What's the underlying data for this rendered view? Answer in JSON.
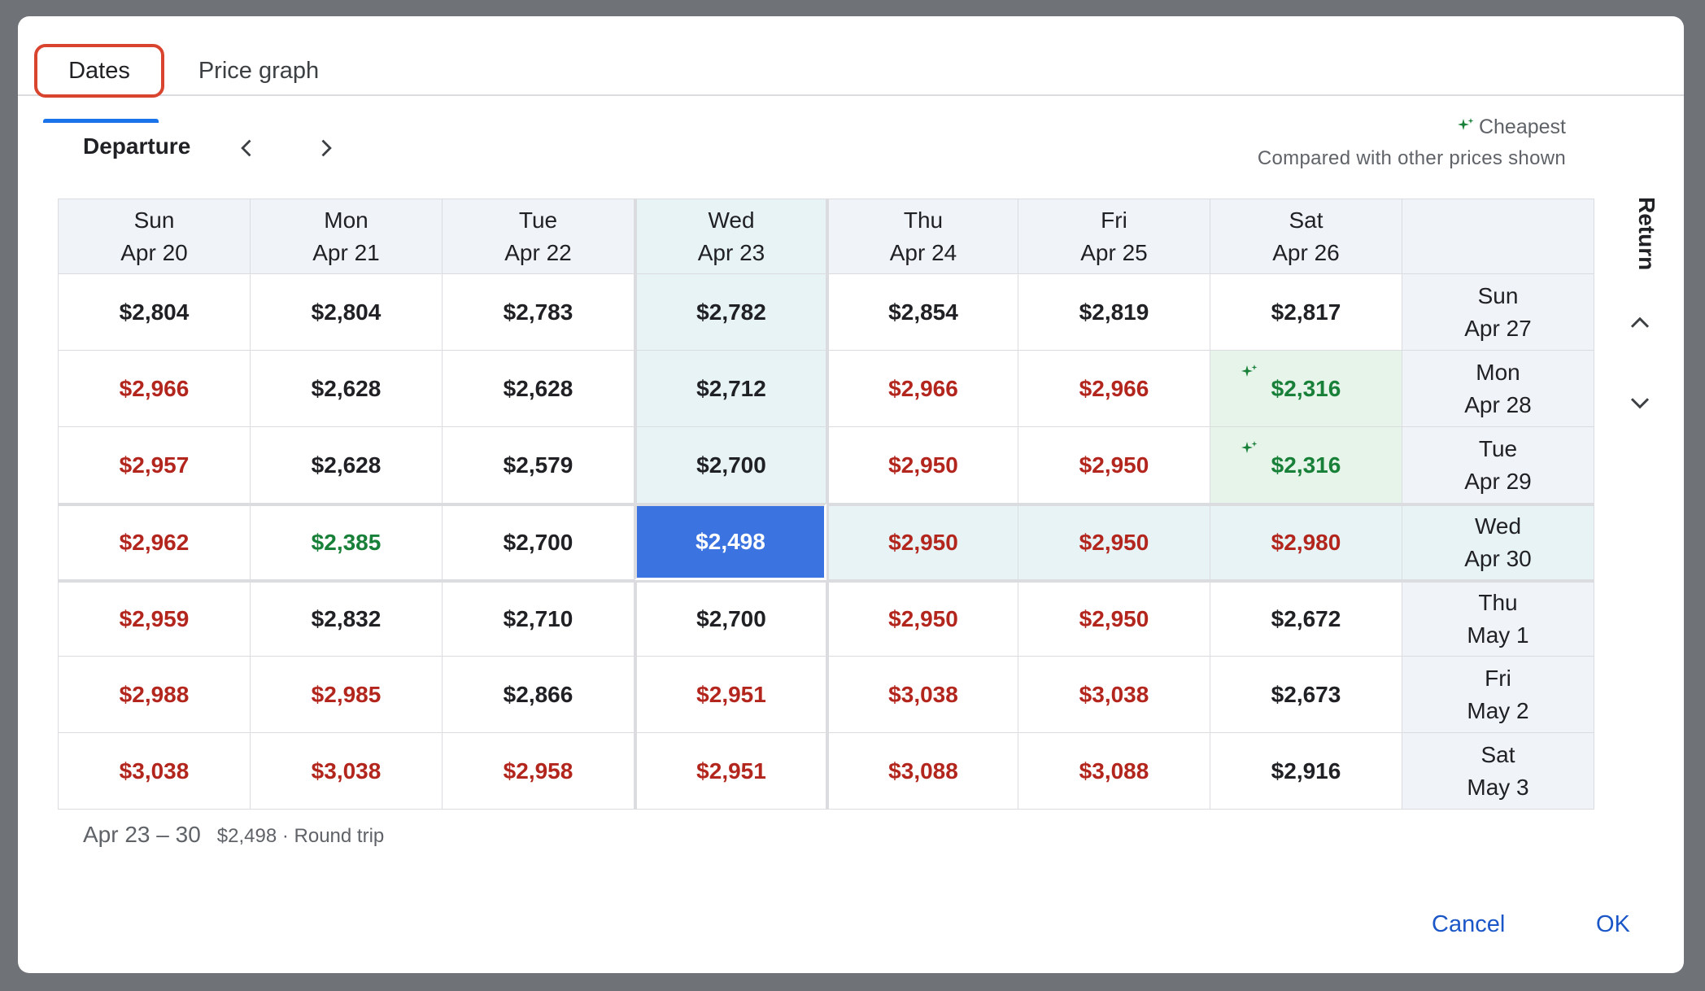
{
  "tabs": {
    "dates": "Dates",
    "price_graph": "Price graph"
  },
  "departure_label": "Departure",
  "legend": {
    "title": "Cheapest",
    "subtitle": "Compared with other prices shown"
  },
  "return_label": "Return",
  "departure_dates": [
    {
      "day": "Sun",
      "date": "Apr 20"
    },
    {
      "day": "Mon",
      "date": "Apr 21"
    },
    {
      "day": "Tue",
      "date": "Apr 22"
    },
    {
      "day": "Wed",
      "date": "Apr 23"
    },
    {
      "day": "Thu",
      "date": "Apr 24"
    },
    {
      "day": "Fri",
      "date": "Apr 25"
    },
    {
      "day": "Sat",
      "date": "Apr 26"
    }
  ],
  "return_dates": [
    {
      "day": "Sun",
      "date": "Apr 27"
    },
    {
      "day": "Mon",
      "date": "Apr 28"
    },
    {
      "day": "Tue",
      "date": "Apr 29"
    },
    {
      "day": "Wed",
      "date": "Apr 30"
    },
    {
      "day": "Thu",
      "date": "May 1"
    },
    {
      "day": "Fri",
      "date": "May 2"
    },
    {
      "day": "Sat",
      "date": "May 3"
    }
  ],
  "prices": [
    [
      "$2,804",
      "$2,804",
      "$2,783",
      "$2,782",
      "$2,854",
      "$2,819",
      "$2,817"
    ],
    [
      "$2,966",
      "$2,628",
      "$2,628",
      "$2,712",
      "$2,966",
      "$2,966",
      "$2,316"
    ],
    [
      "$2,957",
      "$2,628",
      "$2,579",
      "$2,700",
      "$2,950",
      "$2,950",
      "$2,316"
    ],
    [
      "$2,962",
      "$2,385",
      "$2,700",
      "$2,498",
      "$2,950",
      "$2,950",
      "$2,980"
    ],
    [
      "$2,959",
      "$2,832",
      "$2,710",
      "$2,700",
      "$2,950",
      "$2,950",
      "$2,672"
    ],
    [
      "$2,988",
      "$2,985",
      "$2,866",
      "$2,951",
      "$3,038",
      "$3,038",
      "$2,673"
    ],
    [
      "$3,038",
      "$3,038",
      "$2,958",
      "$2,951",
      "$3,088",
      "$3,088",
      "$2,916"
    ]
  ],
  "price_colors": [
    [
      "black",
      "black",
      "black",
      "black",
      "black",
      "black",
      "black"
    ],
    [
      "red",
      "black",
      "black",
      "black",
      "red",
      "red",
      "green"
    ],
    [
      "red",
      "black",
      "black",
      "black",
      "red",
      "red",
      "green"
    ],
    [
      "red",
      "green",
      "black",
      "white",
      "red",
      "red",
      "red"
    ],
    [
      "red",
      "black",
      "black",
      "black",
      "red",
      "red",
      "black"
    ],
    [
      "red",
      "red",
      "black",
      "red",
      "red",
      "red",
      "black"
    ],
    [
      "red",
      "red",
      "red",
      "red",
      "red",
      "red",
      "black"
    ]
  ],
  "cheapest_cells": [
    [
      1,
      6
    ],
    [
      2,
      6
    ]
  ],
  "selected": {
    "row": 3,
    "col": 3
  },
  "summary": {
    "range": "Apr 23 – 30",
    "meta": "$2,498 · Round trip"
  },
  "buttons": {
    "cancel": "Cancel",
    "ok": "OK"
  },
  "colors": {
    "accent": "#1a73e8",
    "red_price": "#b3261e",
    "green_price": "#188038",
    "selected_bg": "#3b73e0"
  },
  "icons": {
    "prev": "chevron-left-icon",
    "next": "chevron-right-icon",
    "up": "chevron-up-icon",
    "down": "chevron-down-icon",
    "cheapest": "sparkle-icon"
  }
}
